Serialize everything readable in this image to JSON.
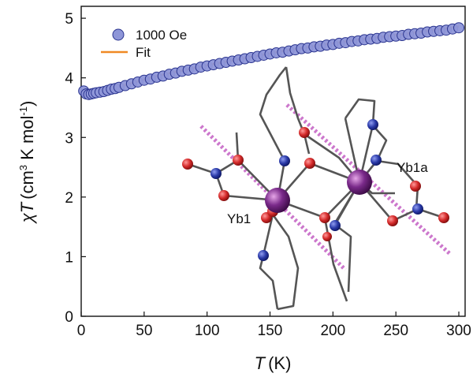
{
  "chart_data": {
    "type": "scatter",
    "title": "",
    "xlabel": {
      "symbol": "T",
      "unit": "(K)"
    },
    "ylabel": {
      "symbol": "χT",
      "unit_parts": [
        "(cm",
        "3",
        " K mol",
        "-1",
        ")"
      ]
    },
    "xlim": [
      0,
      305
    ],
    "ylim": [
      0,
      5.2
    ],
    "xticks": [
      0,
      50,
      100,
      150,
      200,
      250,
      300
    ],
    "yticks": [
      0,
      1,
      2,
      3,
      4,
      5
    ],
    "grid": false,
    "legend_position": "top-left",
    "series": [
      {
        "name": "1000 Oe",
        "kind": "points",
        "x": [
          2,
          4,
          6,
          8,
          10,
          12,
          15,
          18,
          21,
          24,
          27,
          30,
          35,
          40,
          45,
          50,
          55,
          60,
          65,
          70,
          75,
          80,
          85,
          90,
          95,
          100,
          105,
          110,
          115,
          120,
          125,
          130,
          135,
          140,
          145,
          150,
          155,
          160,
          165,
          170,
          175,
          180,
          185,
          190,
          195,
          200,
          205,
          210,
          215,
          220,
          225,
          230,
          235,
          240,
          245,
          250,
          255,
          260,
          265,
          270,
          275,
          280,
          285,
          290,
          295,
          300
        ],
        "y": [
          3.78,
          3.73,
          3.72,
          3.73,
          3.74,
          3.75,
          3.76,
          3.77,
          3.79,
          3.81,
          3.82,
          3.84,
          3.87,
          3.9,
          3.93,
          3.96,
          3.98,
          4.01,
          4.03,
          4.06,
          4.08,
          4.11,
          4.13,
          4.15,
          4.18,
          4.2,
          4.22,
          4.24,
          4.26,
          4.28,
          4.3,
          4.32,
          4.34,
          4.36,
          4.38,
          4.4,
          4.42,
          4.43,
          4.45,
          4.47,
          4.49,
          4.5,
          4.52,
          4.53,
          4.55,
          4.56,
          4.58,
          4.59,
          4.61,
          4.62,
          4.64,
          4.65,
          4.66,
          4.68,
          4.69,
          4.7,
          4.71,
          4.73,
          4.74,
          4.75,
          4.77,
          4.78,
          4.79,
          4.8,
          4.82,
          4.84
        ],
        "color": "#8e96d8",
        "edge_color": "#2b3590"
      },
      {
        "name": "Fit",
        "kind": "line",
        "x": [
          2,
          5,
          10,
          20,
          30,
          40,
          60,
          80,
          100,
          130,
          160,
          190,
          220,
          250,
          280,
          300
        ],
        "y": [
          3.76,
          3.73,
          3.74,
          3.79,
          3.85,
          3.91,
          4.03,
          4.12,
          4.21,
          4.33,
          4.45,
          4.55,
          4.64,
          4.72,
          4.8,
          4.86
        ],
        "color": "#f08a24"
      }
    ],
    "annotations": [
      {
        "text": "Yb1"
      },
      {
        "text": "Yb1a"
      }
    ]
  },
  "colors": {
    "oxygen": "#d42a2a",
    "nitrogen": "#2a3aa8",
    "ytterbium": "#7a2a8a",
    "bond": "#666666",
    "axis_line": "#dd88dd"
  }
}
